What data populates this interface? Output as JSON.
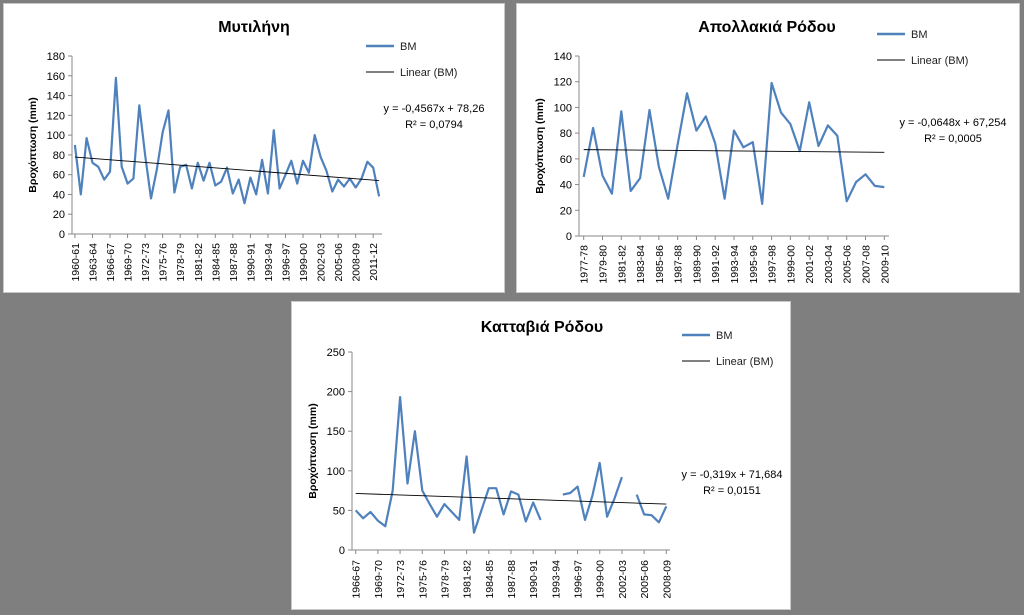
{
  "colors": {
    "series": "#4f81bd",
    "trend": "#000000",
    "background": "#7f7f7f",
    "panel": "#ffffff"
  },
  "chart_data": [
    {
      "type": "line",
      "title": "Μυτιλήνη",
      "ylabel": "Βροχόπτωση (mm)",
      "ylim": [
        0,
        180
      ],
      "yticks": [
        0,
        20,
        40,
        60,
        80,
        100,
        120,
        140,
        160,
        180
      ],
      "x": [
        "1960-61",
        "1961-62",
        "1962-63",
        "1963-64",
        "1964-65",
        "1965-66",
        "1966-67",
        "1967-68",
        "1968-69",
        "1969-70",
        "1970-71",
        "1971-72",
        "1972-73",
        "1973-74",
        "1974-75",
        "1975-76",
        "1976-77",
        "1977-78",
        "1978-79",
        "1979-80",
        "1980-81",
        "1981-82",
        "1982-83",
        "1983-84",
        "1984-85",
        "1985-86",
        "1986-87",
        "1987-88",
        "1988-89",
        "1989-90",
        "1990-91",
        "1991-92",
        "1992-93",
        "1993-94",
        "1994-95",
        "1995-96",
        "1996-97",
        "1997-98",
        "1998-99",
        "1999-00",
        "2000-01",
        "2001-02",
        "2002-03",
        "2003-04",
        "2004-05",
        "2005-06",
        "2006-07",
        "2007-08",
        "2008-09",
        "2009-10",
        "2010-11",
        "2011-12",
        "2012-13"
      ],
      "xtick_labels": [
        "1960-61",
        "1963-64",
        "1966-67",
        "1969-70",
        "1972-73",
        "1975-76",
        "1978-79",
        "1981-82",
        "1984-85",
        "1987-88",
        "1990-91",
        "1993-94",
        "1996-97",
        "1999-00",
        "2002-03",
        "2005-06",
        "2008-09",
        "2011-12"
      ],
      "series": [
        {
          "name": "BM",
          "values": [
            90,
            40,
            97,
            72,
            68,
            55,
            63,
            158,
            68,
            51,
            56,
            130,
            80,
            36,
            65,
            103,
            125,
            42,
            68,
            70,
            46,
            72,
            54,
            72,
            49,
            53,
            67,
            41,
            55,
            31,
            57,
            40,
            75,
            41,
            105,
            46,
            60,
            74,
            51,
            74,
            62,
            100,
            78,
            64,
            43,
            55,
            48,
            56,
            47,
            56,
            73,
            67,
            38
          ]
        },
        {
          "name": "Linear (BM)",
          "trend": {
            "slope": -0.4567,
            "intercept": 78.26
          }
        }
      ],
      "legend": [
        "BM",
        "Linear (BM)"
      ],
      "legend_position": "top-right",
      "annotations": [
        "y = -0,4567x + 78,26",
        "R² = 0,0794"
      ]
    },
    {
      "type": "line",
      "title": "Απολλακιά Ρόδου",
      "ylabel": "Βροχόπτωση (mm)",
      "ylim": [
        0,
        140
      ],
      "yticks": [
        0,
        20,
        40,
        60,
        80,
        100,
        120,
        140
      ],
      "x": [
        "1977-78",
        "1978-79",
        "1979-80",
        "1980-81",
        "1981-82",
        "1982-83",
        "1983-84",
        "1984-85",
        "1985-86",
        "1986-87",
        "1987-88",
        "1988-89",
        "1989-90",
        "1990-91",
        "1991-92",
        "1992-93",
        "1993-94",
        "1994-95",
        "1995-96",
        "1996-97",
        "1997-98",
        "1998-99",
        "1999-00",
        "2000-01",
        "2001-02",
        "2002-03",
        "2003-04",
        "2004-05",
        "2005-06",
        "2006-07",
        "2007-08",
        "2008-09",
        "2009-10"
      ],
      "xtick_labels": [
        "1977-78",
        "1979-80",
        "1981-82",
        "1983-84",
        "1985-86",
        "1987-88",
        "1989-90",
        "1991-92",
        "1993-94",
        "1995-96",
        "1997-98",
        "1999-00",
        "2001-02",
        "2003-04",
        "2005-06",
        "2007-08",
        "2009-10"
      ],
      "series": [
        {
          "name": "BM",
          "values": [
            46,
            84,
            47,
            33,
            97,
            35,
            45,
            98,
            54,
            29,
            71,
            111,
            82,
            93,
            72,
            29,
            82,
            69,
            73,
            25,
            119,
            96,
            87,
            66,
            104,
            70,
            86,
            78,
            27,
            42,
            48,
            39,
            38
          ]
        },
        {
          "name": "Linear (BM)",
          "trend": {
            "slope": -0.0648,
            "intercept": 67.254
          }
        }
      ],
      "legend": [
        "BM",
        "Linear (BM)"
      ],
      "legend_position": "top-right",
      "annotations": [
        "y = -0,0648x + 67,254",
        "R² = 0,0005"
      ]
    },
    {
      "type": "line",
      "title": "Κατταβιά Ρόδου",
      "ylabel": "Βροχόπτωση (mm)",
      "ylim": [
        0,
        250
      ],
      "yticks": [
        0,
        50,
        100,
        150,
        200,
        250
      ],
      "x": [
        "1966-67",
        "1967-68",
        "1968-69",
        "1969-70",
        "1970-71",
        "1971-72",
        "1972-73",
        "1973-74",
        "1974-75",
        "1975-76",
        "1976-77",
        "1977-78",
        "1978-79",
        "1979-80",
        "1980-81",
        "1981-82",
        "1982-83",
        "1983-84",
        "1984-85",
        "1985-86",
        "1986-87",
        "1987-88",
        "1988-89",
        "1989-90",
        "1990-91",
        "1991-92",
        "1992-93",
        "1993-94",
        "1994-95",
        "1995-96",
        "1996-97",
        "1997-98",
        "1998-99",
        "1999-00",
        "2000-01",
        "2001-02",
        "2002-03",
        "2003-04",
        "2004-05",
        "2005-06",
        "2006-07",
        "2007-08",
        "2008-09"
      ],
      "xtick_labels": [
        "1966-67",
        "1969-70",
        "1972-73",
        "1975-76",
        "1978-79",
        "1981-82",
        "1984-85",
        "1987-88",
        "1990-91",
        "1993-94",
        "1996-97",
        "1999-00",
        "2002-03",
        "2005-06",
        "2008-09"
      ],
      "series": [
        {
          "name": "BM",
          "values": [
            50,
            40,
            48,
            37,
            30,
            75,
            193,
            84,
            150,
            75,
            58,
            42,
            58,
            48,
            38,
            118,
            22,
            50,
            78,
            78,
            45,
            74,
            70,
            36,
            60,
            38,
            null,
            null,
            70,
            72,
            80,
            38,
            68,
            110,
            42,
            65,
            92,
            null,
            70,
            45,
            44,
            35,
            55
          ]
        },
        {
          "name": "Linear (BM)",
          "trend": {
            "slope": -0.319,
            "intercept": 71.684
          }
        }
      ],
      "legend": [
        "BM",
        "Linear (BM)"
      ],
      "legend_position": "top-right",
      "annotations": [
        "y = -0,319x + 71,684",
        "R² = 0,0151"
      ]
    }
  ]
}
